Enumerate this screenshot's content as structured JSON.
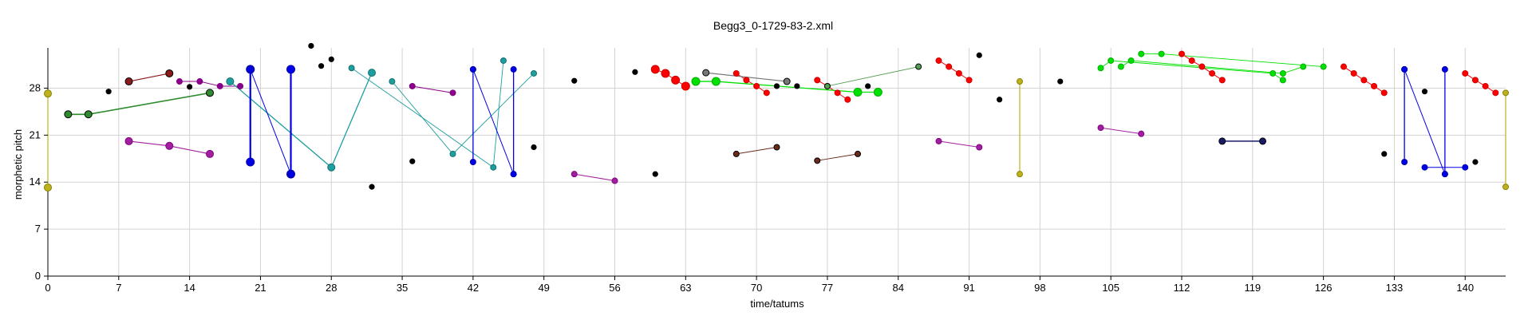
{
  "chart_data": {
    "type": "scatter",
    "title": "Begg3_0-1729-83-2.xml",
    "xlabel": "time/tatums",
    "ylabel": "morphetic pitch",
    "xlim": [
      0,
      144
    ],
    "ylim": [
      0,
      34
    ],
    "xticks": [
      0,
      7,
      14,
      21,
      28,
      35,
      42,
      49,
      56,
      63,
      70,
      77,
      84,
      91,
      98,
      105,
      112,
      119,
      126,
      133,
      140
    ],
    "yticks": [
      0,
      7,
      14,
      21,
      28
    ],
    "grid": true,
    "points": [
      {
        "x": 6,
        "y": 27.5,
        "color": "#000000",
        "edge": "#000000",
        "r": 3.2
      },
      {
        "x": 14,
        "y": 28.2,
        "color": "#000000",
        "edge": "#000000",
        "r": 3.2
      },
      {
        "x": 26,
        "y": 34.3,
        "color": "#000000",
        "edge": "#000000",
        "r": 3.2
      },
      {
        "x": 27,
        "y": 31.3,
        "color": "#000000",
        "edge": "#000000",
        "r": 3.2
      },
      {
        "x": 28,
        "y": 32.3,
        "color": "#000000",
        "edge": "#000000",
        "r": 3.2
      },
      {
        "x": 32,
        "y": 13.3,
        "color": "#000000",
        "edge": "#000000",
        "r": 3.2
      },
      {
        "x": 36,
        "y": 17.1,
        "color": "#000000",
        "edge": "#000000",
        "r": 3.2
      },
      {
        "x": 48,
        "y": 19.2,
        "color": "#000000",
        "edge": "#000000",
        "r": 3.2
      },
      {
        "x": 52,
        "y": 29.1,
        "color": "#000000",
        "edge": "#000000",
        "r": 3.2
      },
      {
        "x": 58,
        "y": 30.4,
        "color": "#000000",
        "edge": "#000000",
        "r": 3.2
      },
      {
        "x": 60,
        "y": 15.2,
        "color": "#000000",
        "edge": "#000000",
        "r": 3.2
      },
      {
        "x": 92,
        "y": 32.9,
        "color": "#000000",
        "edge": "#000000",
        "r": 3.2
      },
      {
        "x": 94,
        "y": 26.3,
        "color": "#000000",
        "edge": "#000000",
        "r": 3.2
      },
      {
        "x": 100,
        "y": 29.0,
        "color": "#000000",
        "edge": "#000000",
        "r": 3.2
      },
      {
        "x": 132,
        "y": 18.2,
        "color": "#000000",
        "edge": "#000000",
        "r": 3.2
      },
      {
        "x": 136,
        "y": 27.5,
        "color": "#000000",
        "edge": "#000000",
        "r": 3.2
      },
      {
        "x": 141,
        "y": 17.0,
        "color": "#000000",
        "edge": "#000000",
        "r": 3.2
      },
      {
        "x": 72,
        "y": 28.3,
        "color": "#000000",
        "edge": "#000000",
        "r": 3.2
      },
      {
        "x": 74,
        "y": 28.3,
        "color": "#000000",
        "edge": "#000000",
        "r": 3.2
      },
      {
        "x": 81,
        "y": 28.3,
        "color": "#000000",
        "edge": "#000000",
        "r": 3.2
      }
    ],
    "series": [
      {
        "color": "#bcb21e",
        "edge": "#8a8200",
        "width": 1.2,
        "r": 4.5,
        "points": [
          [
            0,
            27.2
          ],
          [
            0,
            13.2
          ]
        ]
      },
      {
        "color": "#2e8b2e",
        "edge": "#000000",
        "width": 1.6,
        "r": 4.5,
        "points": [
          [
            2,
            24.1
          ],
          [
            4,
            24.1
          ],
          [
            16,
            27.3
          ]
        ]
      },
      {
        "color": "#8b1a1a",
        "edge": "#000000",
        "width": 1.2,
        "r": 4.5,
        "points": [
          [
            8,
            29.0
          ],
          [
            12,
            30.2
          ]
        ]
      },
      {
        "color": "#8b008b",
        "edge": "#800080",
        "width": 1.0,
        "r": 3.5,
        "points": [
          [
            13,
            29.0
          ],
          [
            15,
            29.0
          ],
          [
            17,
            28.3
          ],
          [
            19,
            28.3
          ]
        ]
      },
      {
        "color": "#a020a0",
        "edge": "#800080",
        "width": 1.2,
        "r": 4.5,
        "points": [
          [
            8,
            20.1
          ],
          [
            12,
            19.4
          ],
          [
            16,
            18.2
          ]
        ]
      },
      {
        "color": "#1e9e9e",
        "edge": "#127070",
        "width": 1.3,
        "r": 4.5,
        "points": [
          [
            18,
            29.0
          ],
          [
            28,
            16.2
          ],
          [
            32,
            30.3
          ]
        ]
      },
      {
        "color": "#0000e6",
        "edge": "#0000b0",
        "width": 2.2,
        "r": 5,
        "points": [
          [
            20,
            30.8
          ],
          [
            20,
            17.0
          ]
        ]
      },
      {
        "color": "#0000e6",
        "edge": "#0000b0",
        "width": 2.2,
        "r": 5,
        "points": [
          [
            24,
            30.8
          ],
          [
            24,
            15.2
          ]
        ]
      },
      {
        "color": "#0000e6",
        "edge": "#0000b0",
        "width": 1.0,
        "r": 4,
        "points": [
          [
            20,
            30.8
          ],
          [
            24,
            15.2
          ]
        ]
      },
      {
        "color": "#1e9e9e",
        "edge": "#127070",
        "width": 0.9,
        "r": 3.5,
        "points": [
          [
            30,
            31.0
          ],
          [
            44,
            16.2
          ],
          [
            45,
            32.1
          ]
        ]
      },
      {
        "color": "#1e9e9e",
        "edge": "#127070",
        "width": 0.9,
        "r": 3.5,
        "points": [
          [
            34,
            29.0
          ],
          [
            40,
            18.2
          ],
          [
            48,
            30.2
          ]
        ]
      },
      {
        "color": "#8b008b",
        "edge": "#800080",
        "width": 1.0,
        "r": 3.5,
        "points": [
          [
            36,
            28.3
          ],
          [
            40,
            27.3
          ]
        ]
      },
      {
        "color": "#0000e6",
        "edge": "#0000b0",
        "width": 1.3,
        "r": 3.5,
        "points": [
          [
            42,
            30.8
          ],
          [
            42,
            17.0
          ]
        ]
      },
      {
        "color": "#0000e6",
        "edge": "#0000b0",
        "width": 1.0,
        "r": 3.5,
        "points": [
          [
            42,
            30.8
          ],
          [
            46,
            15.2
          ]
        ]
      },
      {
        "color": "#0000e6",
        "edge": "#0000b0",
        "width": 1.3,
        "r": 3.5,
        "points": [
          [
            46,
            30.8
          ],
          [
            46,
            15.2
          ]
        ]
      },
      {
        "color": "#a020a0",
        "edge": "#800080",
        "width": 1.0,
        "r": 3.5,
        "points": [
          [
            52,
            15.2
          ],
          [
            56,
            14.2
          ]
        ]
      },
      {
        "color": "#ff0000",
        "edge": "#cc0000",
        "width": 1.0,
        "r": 5,
        "points": [
          [
            60,
            30.8
          ],
          [
            61,
            30.2
          ],
          [
            62,
            29.2
          ],
          [
            63,
            28.3
          ]
        ]
      },
      {
        "color": "#ff0000",
        "edge": "#cc0000",
        "width": 1.0,
        "r": 3.5,
        "points": [
          [
            68,
            30.2
          ],
          [
            69,
            29.2
          ],
          [
            70,
            28.3
          ],
          [
            71,
            27.3
          ]
        ]
      },
      {
        "color": "#ff0000",
        "edge": "#cc0000",
        "width": 1.0,
        "r": 3.5,
        "points": [
          [
            76,
            29.2
          ],
          [
            77,
            28.3
          ],
          [
            78,
            27.3
          ],
          [
            79,
            26.3
          ]
        ]
      },
      {
        "color": "#777777",
        "edge": "#000000",
        "width": 1.2,
        "r": 4,
        "points": [
          [
            65,
            30.3
          ],
          [
            73,
            29.0
          ]
        ]
      },
      {
        "color": "#00e000",
        "edge": "#00b000",
        "width": 1.3,
        "r": 5,
        "points": [
          [
            64,
            29.0
          ],
          [
            66,
            29.0
          ],
          [
            80,
            27.4
          ],
          [
            82,
            27.4
          ]
        ]
      },
      {
        "color": "#6b2a1a",
        "edge": "#000000",
        "width": 1.0,
        "r": 3.5,
        "points": [
          [
            68,
            18.2
          ],
          [
            72,
            19.2
          ]
        ]
      },
      {
        "color": "#6b2a1a",
        "edge": "#000000",
        "width": 1.0,
        "r": 3.5,
        "points": [
          [
            76,
            17.2
          ],
          [
            80,
            18.2
          ]
        ]
      },
      {
        "color": "#55a055",
        "edge": "#000000",
        "width": 1.0,
        "r": 3.5,
        "points": [
          [
            77,
            28.3
          ],
          [
            86,
            31.2
          ]
        ]
      },
      {
        "color": "#ff0000",
        "edge": "#cc0000",
        "width": 1.0,
        "r": 3.5,
        "points": [
          [
            88,
            32.1
          ],
          [
            89,
            31.2
          ],
          [
            90,
            30.2
          ],
          [
            91,
            29.2
          ]
        ]
      },
      {
        "color": "#a020a0",
        "edge": "#800080",
        "width": 1.0,
        "r": 3.5,
        "points": [
          [
            88,
            20.1
          ],
          [
            92,
            19.2
          ]
        ]
      },
      {
        "color": "#bcb21e",
        "edge": "#8a8200",
        "width": 1.2,
        "r": 3.5,
        "points": [
          [
            96,
            29.0
          ],
          [
            96,
            15.2
          ]
        ]
      },
      {
        "color": "#00e000",
        "edge": "#00b000",
        "width": 0.9,
        "r": 3.5,
        "points": [
          [
            104,
            31.0
          ],
          [
            105,
            32.1
          ],
          [
            121,
            30.2
          ],
          [
            122,
            29.2
          ]
        ]
      },
      {
        "color": "#00e000",
        "edge": "#00b000",
        "width": 0.9,
        "r": 3.5,
        "points": [
          [
            106,
            31.2
          ],
          [
            107,
            32.1
          ],
          [
            122,
            30.2
          ],
          [
            124,
            31.2
          ]
        ]
      },
      {
        "color": "#00e000",
        "edge": "#00b000",
        "width": 0.9,
        "r": 3.5,
        "points": [
          [
            108,
            33.1
          ],
          [
            110,
            33.1
          ],
          [
            126,
            31.2
          ]
        ]
      },
      {
        "color": "#ff0000",
        "edge": "#cc0000",
        "width": 1.0,
        "r": 3.5,
        "points": [
          [
            112,
            33.1
          ],
          [
            113,
            32.1
          ],
          [
            114,
            31.2
          ],
          [
            115,
            30.2
          ],
          [
            116,
            29.2
          ]
        ]
      },
      {
        "color": "#a020a0",
        "edge": "#800080",
        "width": 1.0,
        "r": 3.5,
        "points": [
          [
            104,
            22.1
          ],
          [
            108,
            21.2
          ]
        ]
      },
      {
        "color": "#1a1a6b",
        "edge": "#000000",
        "width": 1.5,
        "r": 4,
        "points": [
          [
            116,
            20.1
          ],
          [
            120,
            20.1
          ]
        ]
      },
      {
        "color": "#ff0000",
        "edge": "#cc0000",
        "width": 1.0,
        "r": 3.5,
        "points": [
          [
            128,
            31.2
          ],
          [
            129,
            30.2
          ],
          [
            130,
            29.2
          ],
          [
            131,
            28.3
          ],
          [
            132,
            27.3
          ]
        ]
      },
      {
        "color": "#0000e6",
        "edge": "#0000b0",
        "width": 1.3,
        "r": 3.5,
        "points": [
          [
            134,
            30.8
          ],
          [
            134,
            17.0
          ]
        ]
      },
      {
        "color": "#0000e6",
        "edge": "#0000b0",
        "width": 1.0,
        "r": 3.5,
        "points": [
          [
            134,
            30.8
          ],
          [
            138,
            15.2
          ]
        ]
      },
      {
        "color": "#0000e6",
        "edge": "#0000b0",
        "width": 1.3,
        "r": 3.5,
        "points": [
          [
            138,
            30.8
          ],
          [
            138,
            15.2
          ]
        ]
      },
      {
        "color": "#0000e6",
        "edge": "#0000b0",
        "width": 1.0,
        "r": 3.5,
        "points": [
          [
            136,
            16.2
          ],
          [
            140,
            16.2
          ]
        ]
      },
      {
        "color": "#ff0000",
        "edge": "#cc0000",
        "width": 1.0,
        "r": 3.5,
        "points": [
          [
            140,
            30.2
          ],
          [
            141,
            29.2
          ],
          [
            142,
            28.3
          ],
          [
            143,
            27.3
          ]
        ]
      },
      {
        "color": "#bcb21e",
        "edge": "#8a8200",
        "width": 1.2,
        "r": 3.5,
        "points": [
          [
            144,
            27.3
          ],
          [
            144,
            13.3
          ]
        ]
      }
    ]
  }
}
